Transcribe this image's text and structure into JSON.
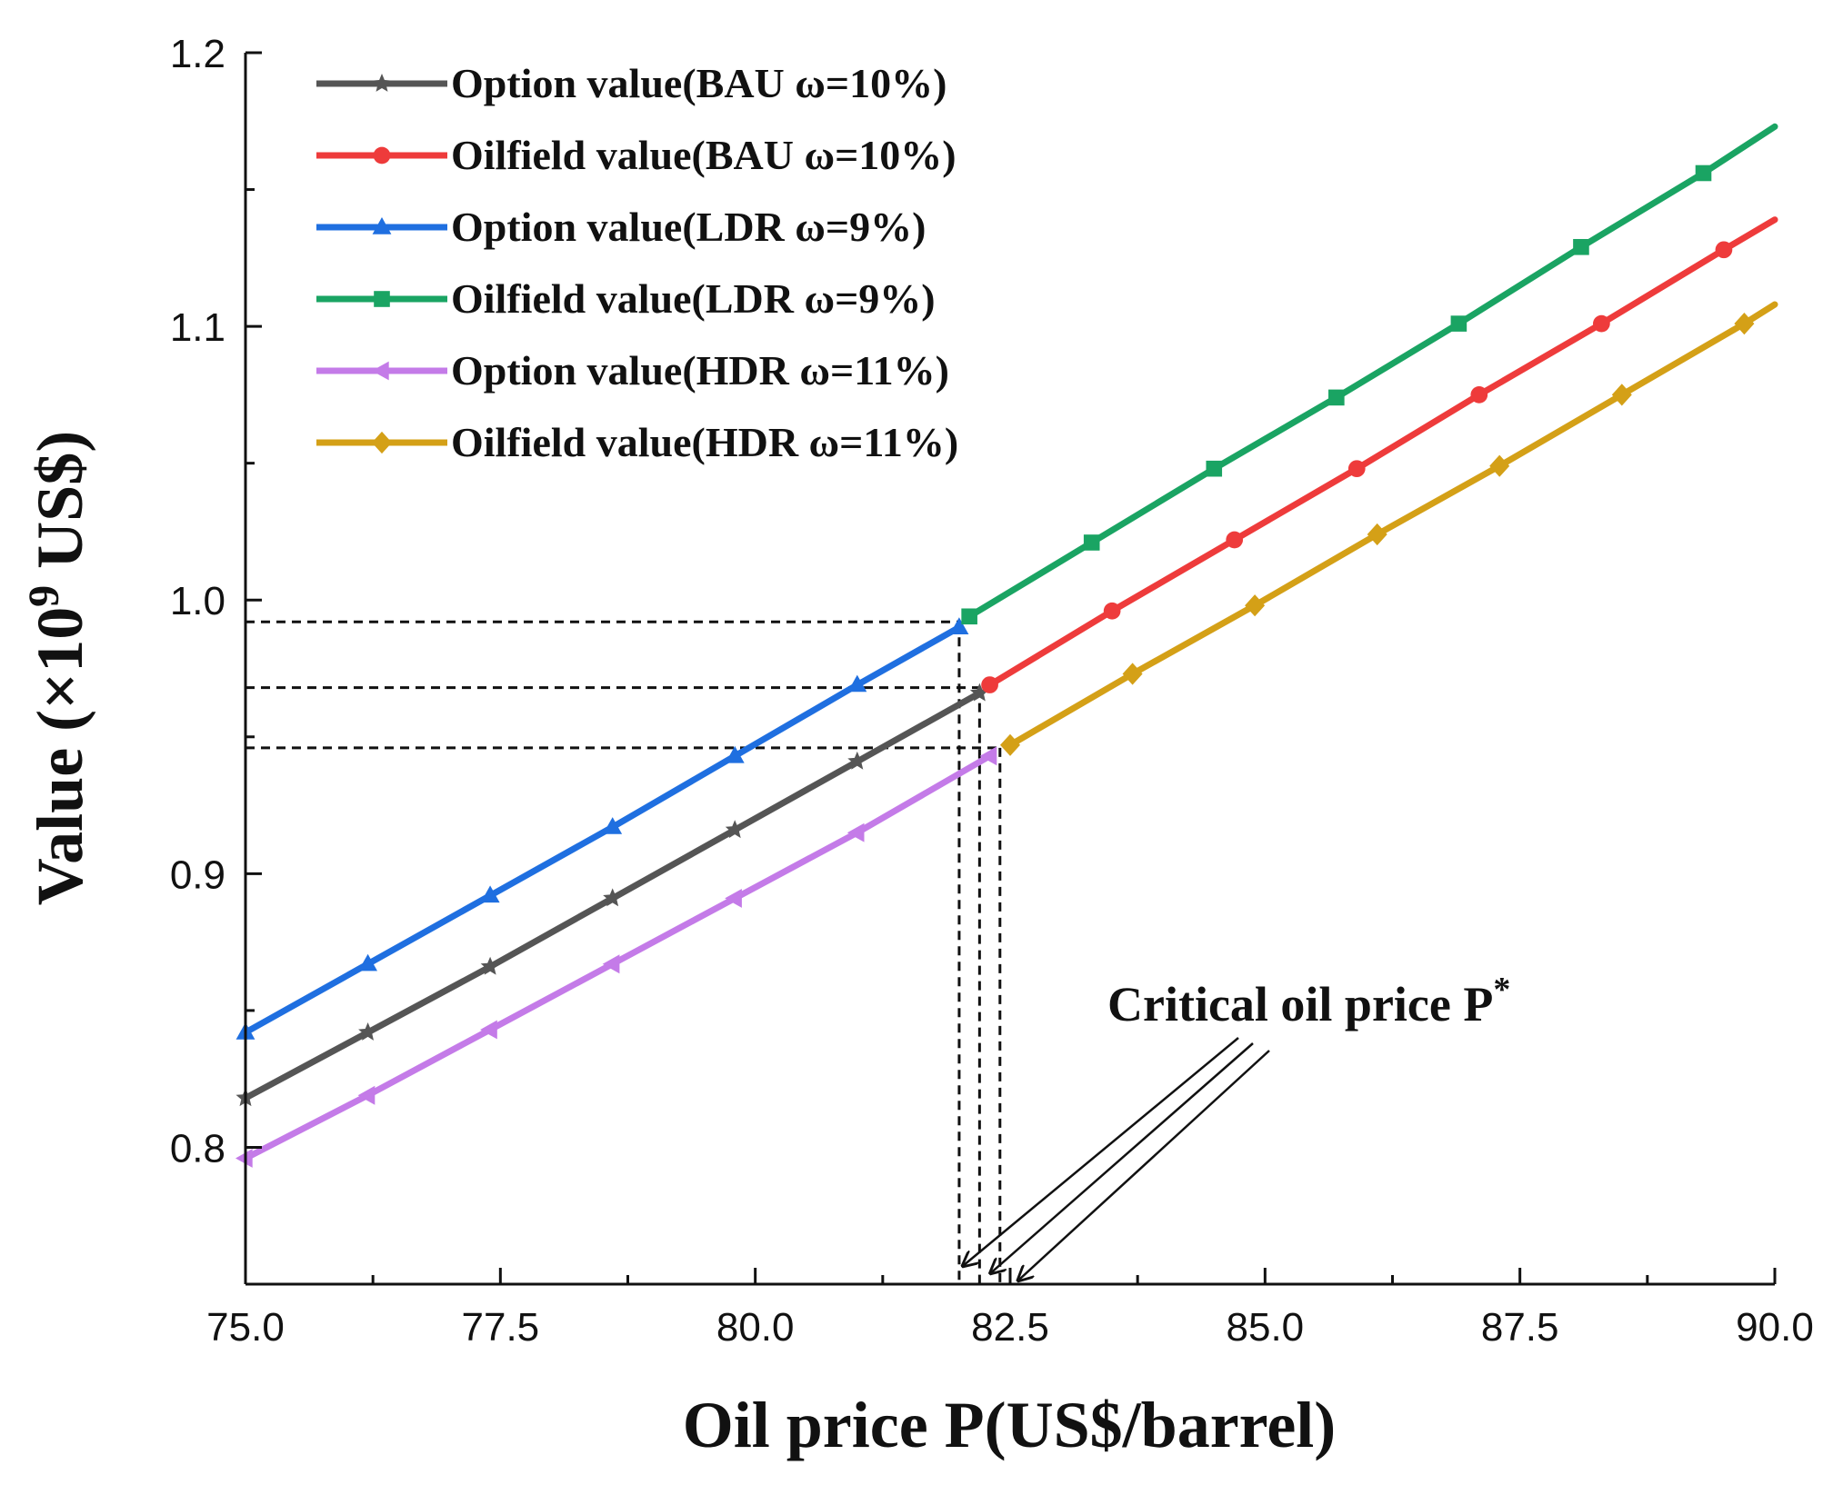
{
  "chart_data": {
    "type": "line",
    "title": "",
    "xlabel": "Oil price P(US$/barrel)",
    "ylabel_main": "Value (×10",
    "ylabel_exponent": "9",
    "ylabel_tail": " US$)",
    "xlim": [
      75,
      90
    ],
    "ylim": [
      0.75,
      1.2
    ],
    "x_ticks": [
      "75.0",
      "77.5",
      "80.0",
      "82.5",
      "85.0",
      "87.5",
      "90.0"
    ],
    "y_ticks": [
      "0.8",
      "0.9",
      "1.0",
      "1.1",
      "1.2"
    ],
    "grid": false,
    "legend_position": "top-left",
    "series": [
      {
        "name": "Option value(BAU ω=10%)",
        "color": "#555555",
        "marker": "star",
        "x": [
          75.0,
          76.2,
          77.4,
          78.6,
          79.8,
          81.0,
          82.2
        ],
        "y": [
          0.818,
          0.842,
          0.866,
          0.891,
          0.916,
          0.941,
          0.966
        ]
      },
      {
        "name": "Oilfield value(BAU ω=10%)",
        "color": "#ee3b3b",
        "marker": "circle",
        "x": [
          82.3,
          83.5,
          84.7,
          85.9,
          87.1,
          88.3,
          89.5,
          90.0
        ],
        "y": [
          0.969,
          0.996,
          1.022,
          1.048,
          1.075,
          1.101,
          1.128,
          1.139
        ]
      },
      {
        "name": "Option value(LDR ω=9%)",
        "color": "#1f6fe0",
        "marker": "triangle-up",
        "x": [
          75.0,
          76.2,
          77.4,
          78.6,
          79.8,
          81.0,
          82.0
        ],
        "y": [
          0.842,
          0.867,
          0.892,
          0.917,
          0.943,
          0.969,
          0.99
        ]
      },
      {
        "name": "Oilfield value(LDR ω=9%)",
        "color": "#1aa463",
        "marker": "square",
        "x": [
          82.1,
          83.3,
          84.5,
          85.7,
          86.9,
          88.1,
          89.3,
          90.0
        ],
        "y": [
          0.994,
          1.021,
          1.048,
          1.074,
          1.101,
          1.129,
          1.156,
          1.173
        ]
      },
      {
        "name": "Option value(HDR ω=11%)",
        "color": "#c47be8",
        "marker": "triangle-left",
        "x": [
          75.0,
          76.2,
          77.4,
          78.6,
          79.8,
          81.0,
          82.3
        ],
        "y": [
          0.796,
          0.819,
          0.843,
          0.867,
          0.891,
          0.915,
          0.943
        ]
      },
      {
        "name": "Oilfield value(HDR ω=11%)",
        "color": "#d4a017",
        "marker": "diamond",
        "x": [
          82.5,
          83.7,
          84.9,
          86.1,
          87.3,
          88.5,
          89.7,
          90.0
        ],
        "y": [
          0.947,
          0.973,
          0.998,
          1.024,
          1.049,
          1.075,
          1.101,
          1.108
        ]
      }
    ],
    "critical_points": [
      {
        "x": 82.0,
        "y": 0.992
      },
      {
        "x": 82.2,
        "y": 0.968
      },
      {
        "x": 82.4,
        "y": 0.946
      }
    ],
    "annotation_main": "Critical oil price P",
    "annotation_superscript": "*"
  }
}
